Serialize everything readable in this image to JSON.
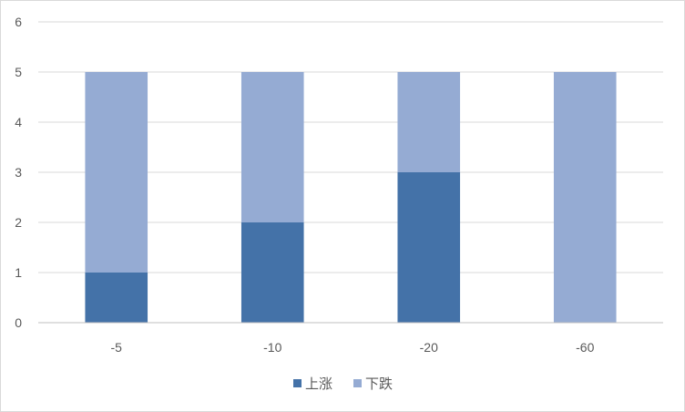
{
  "chart_data": {
    "type": "bar",
    "stacked": true,
    "categories": [
      "-5",
      "-10",
      "-20",
      "-60"
    ],
    "series": [
      {
        "name": "上涨",
        "values": [
          1,
          2,
          3,
          0
        ],
        "color": "#4472a8"
      },
      {
        "name": "下跌",
        "values": [
          4,
          3,
          2,
          5
        ],
        "color": "#95abd3"
      }
    ],
    "ylim": [
      0,
      6
    ],
    "yticks": [
      0,
      1,
      2,
      3,
      4,
      5,
      6
    ],
    "grid": true,
    "legend_position": "bottom",
    "title": "",
    "xlabel": "",
    "ylabel": ""
  }
}
